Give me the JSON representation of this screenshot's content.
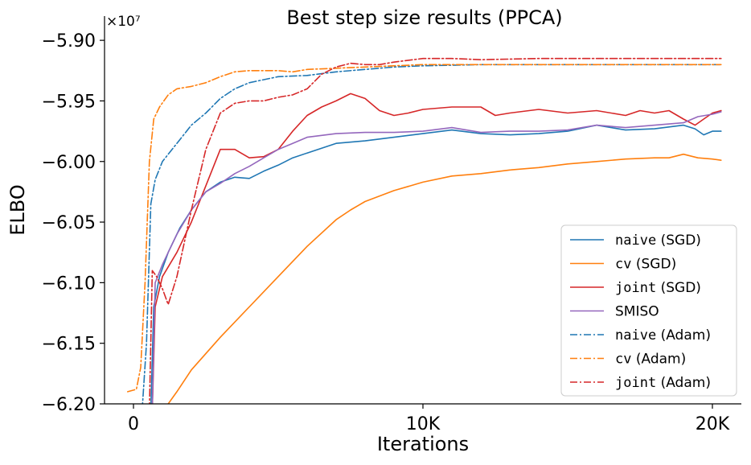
{
  "chart_data": {
    "type": "line",
    "title": "Best step size results (PPCA)",
    "xlabel": "Iterations",
    "ylabel": "ELBO",
    "y_multiplier": "×10⁷",
    "xlim": [
      -1000,
      21000
    ],
    "ylim": [
      -6.2,
      -5.88
    ],
    "x_ticks": [
      0,
      10000,
      20000
    ],
    "x_tick_labels": [
      "0",
      "10K",
      "20K"
    ],
    "y_ticks": [
      -6.2,
      -6.15,
      -6.1,
      -6.05,
      -6.0,
      -5.95,
      -5.9
    ],
    "y_tick_labels": [
      "−6.20",
      "−6.15",
      "−6.10",
      "−6.05",
      "−6.00",
      "−5.95",
      "−5.90"
    ],
    "grid": false,
    "legend_position": "lower-right",
    "series": [
      {
        "name_code": "naive",
        "name_rest": " (SGD)",
        "color": "#1f77b4",
        "dash": "solid",
        "x": [
          600,
          700,
          900,
          1200,
          1600,
          2000,
          2500,
          3000,
          3500,
          4000,
          4500,
          5000,
          5500,
          6000,
          7000,
          8000,
          9000,
          10000,
          11000,
          12000,
          13000,
          14000,
          15000,
          16000,
          17000,
          18000,
          19000,
          19400,
          19700,
          20000,
          20300
        ],
        "y": [
          -6.205,
          -6.12,
          -6.095,
          -6.075,
          -6.055,
          -6.04,
          -6.025,
          -6.017,
          -6.013,
          -6.014,
          -6.008,
          -6.003,
          -5.997,
          -5.993,
          -5.985,
          -5.983,
          -5.98,
          -5.977,
          -5.974,
          -5.977,
          -5.978,
          -5.977,
          -5.975,
          -5.97,
          -5.974,
          -5.973,
          -5.97,
          -5.973,
          -5.978,
          -5.975,
          -5.975
        ]
      },
      {
        "name_code": "cv",
        "name_rest": " (SGD)",
        "color": "#ff7f0e",
        "dash": "solid",
        "x": [
          1200,
          1500,
          2000,
          3000,
          4000,
          5000,
          6000,
          7000,
          7500,
          8000,
          9000,
          10000,
          11000,
          12000,
          13000,
          14000,
          15000,
          16000,
          17000,
          18000,
          18500,
          19000,
          19500,
          20000,
          20300
        ],
        "y": [
          -6.2,
          -6.19,
          -6.172,
          -6.145,
          -6.12,
          -6.095,
          -6.07,
          -6.048,
          -6.04,
          -6.033,
          -6.024,
          -6.017,
          -6.012,
          -6.01,
          -6.007,
          -6.005,
          -6.002,
          -6.0,
          -5.998,
          -5.997,
          -5.997,
          -5.994,
          -5.997,
          -5.998,
          -5.999
        ]
      },
      {
        "name_code": "joint",
        "name_rest": " (SGD)",
        "color": "#d62728",
        "dash": "solid",
        "x": [
          650,
          750,
          1000,
          1500,
          2000,
          2500,
          3000,
          3500,
          4000,
          4500,
          5000,
          5500,
          6000,
          6500,
          7000,
          7500,
          8000,
          8500,
          9000,
          9500,
          10000,
          11000,
          12000,
          12500,
          13000,
          14000,
          15000,
          16000,
          17000,
          17500,
          18000,
          18500,
          19000,
          19400,
          19700,
          20000,
          20300
        ],
        "y": [
          -6.205,
          -6.12,
          -6.095,
          -6.075,
          -6.05,
          -6.02,
          -5.99,
          -5.99,
          -5.997,
          -5.996,
          -5.99,
          -5.975,
          -5.962,
          -5.955,
          -5.95,
          -5.944,
          -5.948,
          -5.958,
          -5.962,
          -5.96,
          -5.957,
          -5.955,
          -5.955,
          -5.962,
          -5.96,
          -5.957,
          -5.96,
          -5.958,
          -5.962,
          -5.958,
          -5.96,
          -5.958,
          -5.965,
          -5.97,
          -5.965,
          -5.96,
          -5.958
        ]
      },
      {
        "name": "SMISO",
        "color": "#9467bd",
        "dash": "solid",
        "x": [
          650,
          750,
          1000,
          1500,
          2000,
          2500,
          3000,
          3500,
          4000,
          4500,
          5000,
          5500,
          6000,
          7000,
          8000,
          9000,
          10000,
          11000,
          12000,
          13000,
          14000,
          15000,
          16000,
          17000,
          18000,
          19000,
          19500,
          20000,
          20300
        ],
        "y": [
          -6.205,
          -6.1,
          -6.085,
          -6.06,
          -6.04,
          -6.025,
          -6.018,
          -6.01,
          -6.004,
          -5.997,
          -5.99,
          -5.985,
          -5.98,
          -5.977,
          -5.976,
          -5.976,
          -5.975,
          -5.972,
          -5.976,
          -5.975,
          -5.975,
          -5.974,
          -5.97,
          -5.972,
          -5.97,
          -5.968,
          -5.963,
          -5.961,
          -5.959
        ]
      },
      {
        "name_code": "naive",
        "name_rest": " (Adam)",
        "color": "#1f77b4",
        "dash": "dashdot",
        "x": [
          300,
          450,
          600,
          750,
          1000,
          1500,
          2000,
          2500,
          3000,
          3500,
          4000,
          5000,
          6000,
          7000,
          8000,
          9000,
          10000,
          12000,
          15000,
          18000,
          20300
        ],
        "y": [
          -6.205,
          -6.15,
          -6.035,
          -6.015,
          -6.0,
          -5.985,
          -5.97,
          -5.96,
          -5.948,
          -5.94,
          -5.935,
          -5.93,
          -5.929,
          -5.926,
          -5.924,
          -5.922,
          -5.921,
          -5.92,
          -5.92,
          -5.92,
          -5.92
        ]
      },
      {
        "name_code": "cv",
        "name_rest": " (Adam)",
        "color": "#ff7f0e",
        "dash": "dashdot",
        "x": [
          -200,
          100,
          250,
          400,
          550,
          700,
          900,
          1200,
          1500,
          2000,
          2500,
          3000,
          3500,
          4000,
          5000,
          5500,
          6000,
          7000,
          8000,
          9000,
          10000,
          12000,
          15000,
          18000,
          20300
        ],
        "y": [
          -6.19,
          -6.188,
          -6.17,
          -6.1,
          -6.0,
          -5.965,
          -5.955,
          -5.945,
          -5.94,
          -5.938,
          -5.935,
          -5.93,
          -5.926,
          -5.925,
          -5.925,
          -5.926,
          -5.924,
          -5.923,
          -5.922,
          -5.921,
          -5.92,
          -5.92,
          -5.92,
          -5.92,
          -5.92
        ]
      },
      {
        "name_code": "joint",
        "name_rest": " (Adam)",
        "color": "#d62728",
        "dash": "dashdot",
        "x": [
          550,
          650,
          800,
          1000,
          1200,
          1500,
          2000,
          2500,
          3000,
          3500,
          4000,
          4500,
          5000,
          5500,
          6000,
          6500,
          7000,
          7500,
          8000,
          8500,
          9000,
          10000,
          11000,
          12000,
          14000,
          16000,
          18000,
          20300
        ],
        "y": [
          -6.205,
          -6.09,
          -6.095,
          -6.105,
          -6.118,
          -6.095,
          -6.04,
          -5.99,
          -5.96,
          -5.952,
          -5.95,
          -5.95,
          -5.947,
          -5.945,
          -5.94,
          -5.928,
          -5.922,
          -5.919,
          -5.92,
          -5.92,
          -5.918,
          -5.915,
          -5.915,
          -5.916,
          -5.915,
          -5.915,
          -5.915,
          -5.915
        ]
      }
    ]
  }
}
